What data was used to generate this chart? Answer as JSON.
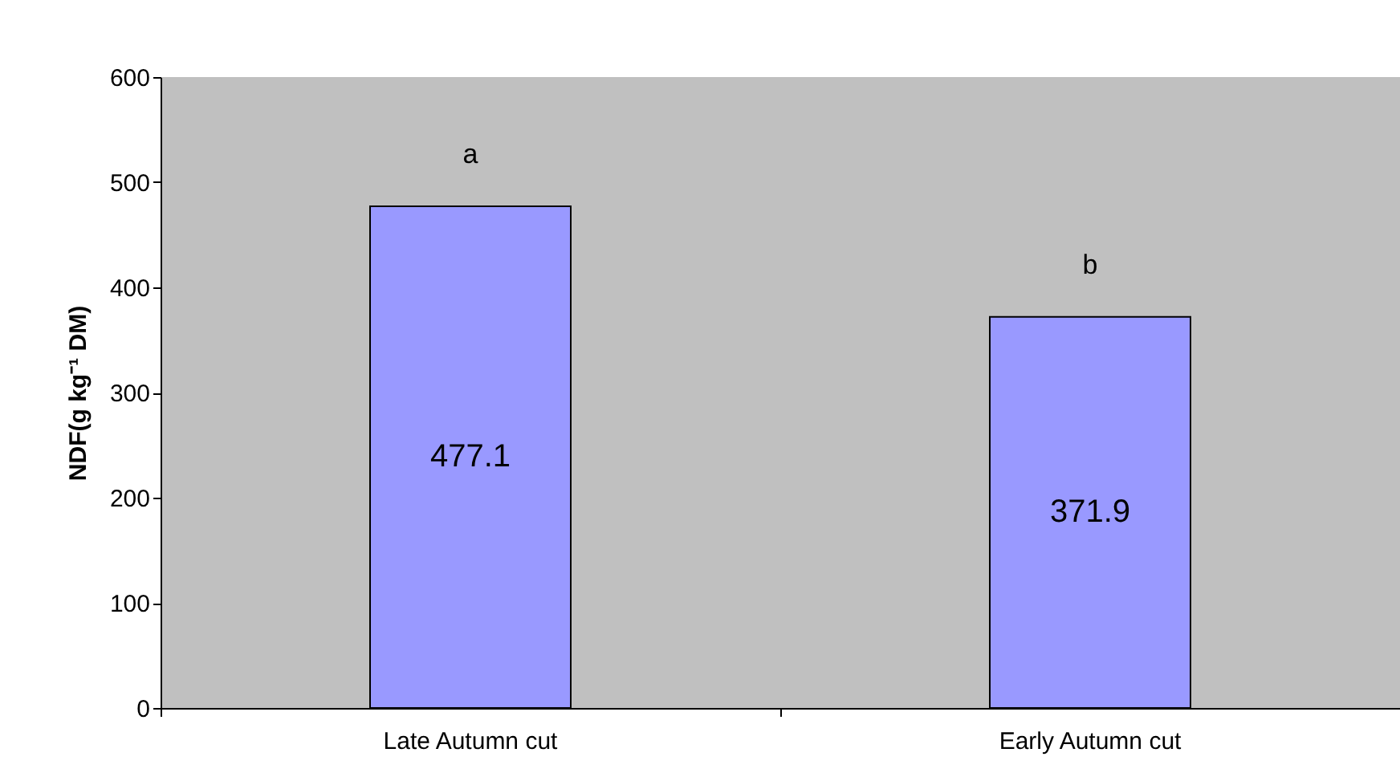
{
  "chart_data": {
    "type": "bar",
    "ylabel": "NDF(g kg⁻¹ DM)",
    "categories": [
      "Late Autumn cut",
      "Early Autumn cut"
    ],
    "values": [
      477.1,
      371.9
    ],
    "color": "#9999ff",
    "ylim": [
      0,
      600
    ],
    "yticks": [
      0,
      100,
      200,
      300,
      400,
      500,
      600
    ],
    "grid": false,
    "data_labels": true,
    "annotations": [
      "a",
      "b"
    ]
  }
}
